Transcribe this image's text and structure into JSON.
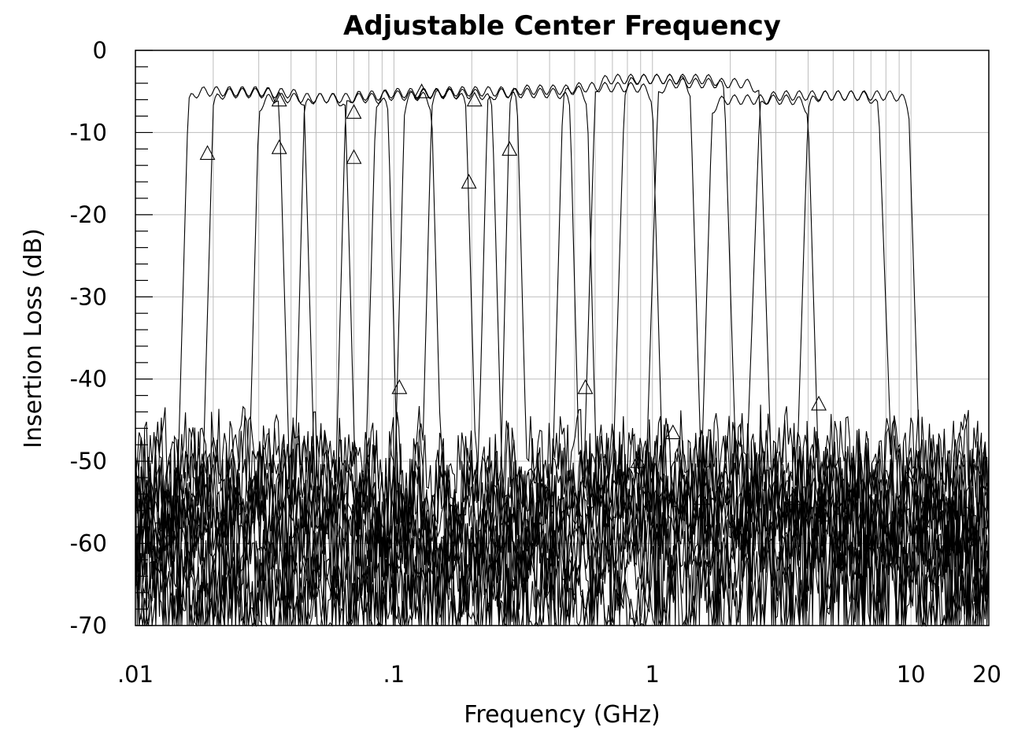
{
  "chart_data": {
    "type": "line",
    "title": "Adjustable Center Frequency",
    "xlabel": "Frequency (GHz)",
    "ylabel": "Insertion Loss (dB)",
    "x_scale": "log",
    "xlim": [
      0.01,
      20
    ],
    "ylim": [
      -70,
      0
    ],
    "x_ticks": [
      0.01,
      0.1,
      1,
      10,
      20
    ],
    "x_tick_labels": [
      ".01",
      ".1",
      "1",
      "10",
      "20"
    ],
    "y_ticks": [
      0,
      -10,
      -20,
      -30,
      -40,
      -50,
      -60,
      -70
    ],
    "y_tick_labels": [
      "0",
      "-10",
      "-20",
      "-30",
      "-40",
      "-50",
      "-60",
      "-70"
    ],
    "grid": true,
    "legend": "none",
    "series": [
      {
        "lo": 0.016,
        "hi": 0.036,
        "peak": -5.0,
        "floor": -60,
        "marker": [
          0.019,
          -12.5
        ]
      },
      {
        "lo": 0.02,
        "hi": 0.045,
        "peak": -5.2,
        "floor": -58,
        "marker": [
          0.036,
          -11.8
        ]
      },
      {
        "lo": 0.03,
        "hi": 0.065,
        "peak": -5.8,
        "floor": -56,
        "marker": [
          0.036,
          -6.0
        ]
      },
      {
        "lo": 0.045,
        "hi": 0.095,
        "peak": -5.8,
        "floor": -55,
        "marker": [
          0.07,
          -13.0
        ]
      },
      {
        "lo": 0.065,
        "hi": 0.14,
        "peak": -5.5,
        "floor": -54,
        "marker": [
          0.07,
          -7.5
        ]
      },
      {
        "lo": 0.085,
        "hi": 0.19,
        "peak": -5.2,
        "floor": -53,
        "marker": [
          0.105,
          -41.0
        ]
      },
      {
        "lo": 0.11,
        "hi": 0.24,
        "peak": -5.3,
        "floor": -53,
        "marker": [
          0.128,
          -5.0
        ]
      },
      {
        "lo": 0.14,
        "hi": 0.3,
        "peak": -5.0,
        "floor": -52,
        "marker": [
          0.195,
          -16.0
        ]
      },
      {
        "lo": 0.23,
        "hi": 0.48,
        "peak": -5.2,
        "floor": -52,
        "marker": [
          0.205,
          -6.0
        ]
      },
      {
        "lo": 0.28,
        "hi": 0.56,
        "peak": -4.8,
        "floor": -55,
        "marker": [
          0.28,
          -12.0
        ]
      },
      {
        "lo": 0.45,
        "hi": 1.0,
        "peak": -4.5,
        "floor": -58,
        "marker": [
          0.55,
          -41.0
        ]
      },
      {
        "lo": 0.6,
        "hi": 1.4,
        "peak": -3.5,
        "floor": -60,
        "marker": [
          0.88,
          -50.0
        ]
      },
      {
        "lo": 0.78,
        "hi": 1.9,
        "peak": -3.5,
        "floor": -62,
        "marker": [
          1.2,
          -46.5
        ]
      },
      {
        "lo": 1.05,
        "hi": 2.6,
        "peak": -4.0,
        "floor": -64,
        "marker": [
          1.55,
          -54.5
        ]
      },
      {
        "lo": 1.7,
        "hi": 4.0,
        "peak": -6.0,
        "floor": -65,
        "marker": [
          3.5,
          -54.5
        ]
      },
      {
        "lo": 2.6,
        "hi": 7.5,
        "peak": -5.5,
        "floor": -66,
        "marker": [
          4.4,
          -43.0
        ]
      },
      {
        "lo": 4.0,
        "hi": 9.8,
        "peak": -5.5,
        "floor": -66,
        "marker": [
          4.6,
          -56.5
        ]
      }
    ]
  }
}
